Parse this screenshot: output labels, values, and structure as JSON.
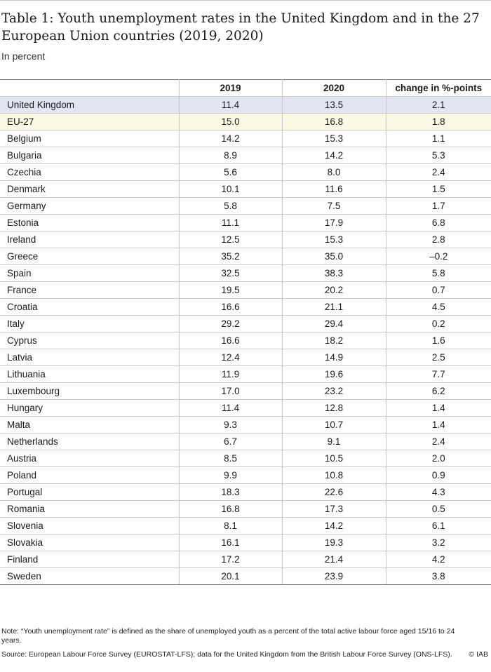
{
  "title": "Table 1: Youth unemployment rates in the United Kingdom and in the 27 European Union countries (2019, 2020)",
  "subtitle": "In percent",
  "headers": [
    "",
    "2019",
    "2020",
    "change in %-points"
  ],
  "rows": [
    {
      "name": "United Kingdom",
      "y2019": "11.4",
      "y2020": "13.5",
      "change": "2.1"
    },
    {
      "name": "EU-27",
      "y2019": "15.0",
      "y2020": "16.8",
      "change": "1.8"
    },
    {
      "name": "Belgium",
      "y2019": "14.2",
      "y2020": "15.3",
      "change": "1.1"
    },
    {
      "name": "Bulgaria",
      "y2019": "8.9",
      "y2020": "14.2",
      "change": "5.3"
    },
    {
      "name": "Czechia",
      "y2019": "5.6",
      "y2020": "8.0",
      "change": "2.4"
    },
    {
      "name": "Denmark",
      "y2019": "10.1",
      "y2020": "11.6",
      "change": "1.5"
    },
    {
      "name": "Germany",
      "y2019": "5.8",
      "y2020": "7.5",
      "change": "1.7"
    },
    {
      "name": "Estonia",
      "y2019": "11.1",
      "y2020": "17.9",
      "change": "6.8"
    },
    {
      "name": "Ireland",
      "y2019": "12.5",
      "y2020": "15.3",
      "change": "2.8"
    },
    {
      "name": "Greece",
      "y2019": "35.2",
      "y2020": "35.0",
      "change": "–0.2"
    },
    {
      "name": "Spain",
      "y2019": "32.5",
      "y2020": "38.3",
      "change": "5.8"
    },
    {
      "name": "France",
      "y2019": "19.5",
      "y2020": "20.2",
      "change": "0.7"
    },
    {
      "name": "Croatia",
      "y2019": "16.6",
      "y2020": "21.1",
      "change": "4.5"
    },
    {
      "name": "Italy",
      "y2019": "29.2",
      "y2020": "29.4",
      "change": "0.2"
    },
    {
      "name": "Cyprus",
      "y2019": "16.6",
      "y2020": "18.2",
      "change": "1.6"
    },
    {
      "name": "Latvia",
      "y2019": "12.4",
      "y2020": "14.9",
      "change": "2.5"
    },
    {
      "name": "Lithuania",
      "y2019": "11.9",
      "y2020": "19.6",
      "change": "7.7"
    },
    {
      "name": "Luxembourg",
      "y2019": "17.0",
      "y2020": "23.2",
      "change": "6.2"
    },
    {
      "name": "Hungary",
      "y2019": "11.4",
      "y2020": "12.8",
      "change": "1.4"
    },
    {
      "name": "Malta",
      "y2019": "9.3",
      "y2020": "10.7",
      "change": "1.4"
    },
    {
      "name": "Netherlands",
      "y2019": "6.7",
      "y2020": "9.1",
      "change": "2.4"
    },
    {
      "name": "Austria",
      "y2019": "8.5",
      "y2020": "10.5",
      "change": "2.0"
    },
    {
      "name": "Poland",
      "y2019": "9.9",
      "y2020": "10.8",
      "change": "0.9"
    },
    {
      "name": "Portugal",
      "y2019": "18.3",
      "y2020": "22.6",
      "change": "4.3"
    },
    {
      "name": "Romania",
      "y2019": "16.8",
      "y2020": "17.3",
      "change": "0.5"
    },
    {
      "name": "Slovenia",
      "y2019": "8.1",
      "y2020": "14.2",
      "change": "6.1"
    },
    {
      "name": "Slovakia",
      "y2019": "16.1",
      "y2020": "19.3",
      "change": "3.2"
    },
    {
      "name": "Finland",
      "y2019": "17.2",
      "y2020": "21.4",
      "change": "4.2"
    },
    {
      "name": "Sweden",
      "y2019": "20.1",
      "y2020": "23.9",
      "change": "3.8"
    }
  ],
  "note": "Note: “Youth unemployment rate” is defined as the share of unemployed youth as a percent of the total active labour force aged 15/16 to 24 years.",
  "source": "Source: European Labour Force Survey (EUROSTAT-LFS); data for the United Kingdom from the British Labour Force Survey (ONS-LFS).",
  "brand": "© IAB",
  "colors": {
    "uk_row": "#e3e6f2",
    "eu_row": "#fbf9e3"
  }
}
